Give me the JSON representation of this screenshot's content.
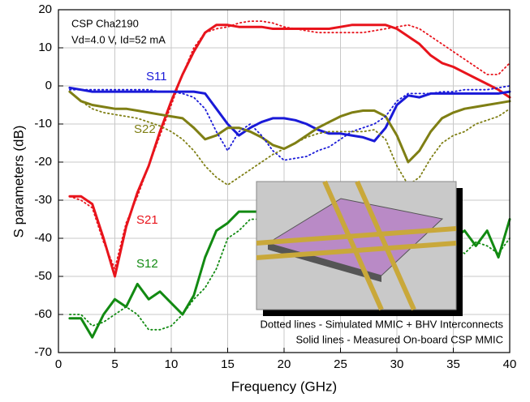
{
  "chart_data": {
    "type": "line",
    "xlabel": "Frequency (GHz)",
    "ylabel": "S parameters (dB)",
    "xlim": [
      0,
      40
    ],
    "xticks": [
      0,
      5,
      10,
      15,
      20,
      25,
      30,
      35,
      40
    ],
    "ylim": [
      -70,
      20
    ],
    "yticks": [
      20,
      10,
      0,
      -10,
      -20,
      -30,
      -40,
      -50,
      -60,
      -70
    ],
    "grid": true,
    "annotations": [
      "CSP Cha2190",
      "Vd=4.0 V, Id=52 mA"
    ],
    "notes": [
      "Dotted lines - Simulated MMIC + BHV Interconnects",
      "Solid lines - Measured On-board CSP MMIC"
    ],
    "x": [
      1,
      2,
      3,
      4,
      5,
      6,
      7,
      8,
      9,
      10,
      11,
      12,
      13,
      14,
      15,
      16,
      17,
      18,
      19,
      20,
      21,
      22,
      23,
      24,
      25,
      26,
      27,
      28,
      29,
      30,
      31,
      32,
      33,
      34,
      35,
      36,
      37,
      38,
      39,
      40
    ],
    "series": [
      {
        "name": "S21",
        "color": "#e8141c",
        "style": "solid",
        "values": [
          -29,
          -29,
          -31,
          -40,
          -50,
          -37,
          -28,
          -21,
          -12,
          -4,
          3,
          9,
          14,
          16,
          16,
          15.5,
          15.5,
          15.5,
          15,
          15,
          15,
          15,
          15,
          15,
          15.5,
          16,
          16,
          16,
          16,
          15,
          13,
          11,
          8,
          6,
          5,
          3.5,
          2,
          0.5,
          -1,
          -3
        ]
      },
      {
        "name": "S11",
        "color": "#1a1ad8",
        "style": "solid",
        "values": [
          -0.5,
          -1,
          -1.5,
          -1.5,
          -1.5,
          -1.5,
          -1.5,
          -1.5,
          -1.5,
          -1.5,
          -1.5,
          -1.5,
          -2,
          -6,
          -10,
          -13,
          -11,
          -9.5,
          -8.5,
          -8.5,
          -9,
          -10,
          -11.5,
          -12.5,
          -12.5,
          -13,
          -13.5,
          -14.5,
          -11,
          -5,
          -2.5,
          -3,
          -2,
          -2,
          -2,
          -2,
          -2,
          -2,
          -2,
          -1.5
        ]
      },
      {
        "name": "S22",
        "color": "#7f7f14",
        "style": "solid",
        "values": [
          -1.5,
          -4,
          -5,
          -5.5,
          -6,
          -6,
          -6.5,
          -7,
          -7.5,
          -8,
          -8.5,
          -11,
          -14,
          -13,
          -11,
          -11,
          -12,
          -13.5,
          -15.5,
          -16.5,
          -15,
          -13,
          -11,
          -9.5,
          -8,
          -7,
          -6.5,
          -6.5,
          -8,
          -13,
          -20,
          -17,
          -12,
          -8.5,
          -7,
          -6,
          -5.5,
          -5,
          -4.5,
          -4
        ]
      },
      {
        "name": "S12",
        "color": "#128a12",
        "style": "solid",
        "values": [
          -61,
          -61,
          -66,
          -60,
          -56,
          -58,
          -52,
          -56,
          -54,
          -57,
          -60,
          -55,
          -45,
          -38,
          -36,
          -33,
          -33,
          -33,
          -33,
          -33,
          -33,
          -33,
          -33,
          -33,
          -33,
          -33,
          -34,
          -35,
          -36,
          -36,
          -37,
          -37,
          -38,
          -38,
          -40,
          -38,
          -42,
          -38,
          -45,
          -35
        ]
      },
      {
        "name": "S21",
        "color": "#e8141c",
        "style": "dotted",
        "values": [
          -29,
          -30,
          -32,
          -41,
          -48,
          -36,
          -29,
          -21,
          -13,
          -5,
          3,
          10,
          14,
          15,
          15.5,
          16.5,
          17,
          17,
          16.5,
          15.5,
          15,
          14.5,
          14,
          14,
          14,
          14,
          14,
          14.5,
          15,
          15.5,
          16,
          15,
          13,
          11,
          9,
          7,
          5,
          3,
          3,
          6
        ]
      },
      {
        "name": "S11",
        "color": "#1a1ad8",
        "style": "dotted",
        "values": [
          -1,
          -1,
          -1,
          -1,
          -1,
          -1,
          -1,
          -1,
          -1.5,
          -1.5,
          -2,
          -3,
          -6,
          -12,
          -17,
          -12,
          -10,
          -13,
          -17,
          -19.5,
          -19,
          -18.5,
          -17,
          -16,
          -14,
          -12,
          -11,
          -10,
          -8,
          -4,
          -2,
          -2,
          -2,
          -1.5,
          -1.5,
          -1,
          -1,
          -1,
          -0.5,
          0
        ]
      },
      {
        "name": "S22",
        "color": "#7f7f14",
        "style": "dotted",
        "values": [
          -1.5,
          -4,
          -6,
          -7,
          -7.5,
          -8,
          -8.5,
          -9.5,
          -10.5,
          -12,
          -14,
          -17,
          -21,
          -24,
          -26,
          -24,
          -22,
          -20,
          -18,
          -16.5,
          -15,
          -13.5,
          -12.5,
          -12,
          -12,
          -12,
          -12,
          -11.5,
          -14,
          -21,
          -26,
          -24,
          -19,
          -15,
          -13,
          -12,
          -10,
          -9,
          -8,
          -6
        ]
      },
      {
        "name": "S12",
        "color": "#128a12",
        "style": "dotted",
        "values": [
          -60,
          -60,
          -63,
          -62,
          -60,
          -58,
          -60,
          -64,
          -64,
          -63,
          -60,
          -56,
          -53,
          -48,
          -40,
          -38,
          -35,
          -35,
          -35,
          -35,
          -35,
          -35,
          -36,
          -36,
          -37,
          -37,
          -37,
          -38,
          -38,
          -39,
          -39,
          -40,
          -40,
          -40,
          -42,
          -44,
          -41,
          -42,
          -44,
          -40
        ]
      }
    ]
  }
}
